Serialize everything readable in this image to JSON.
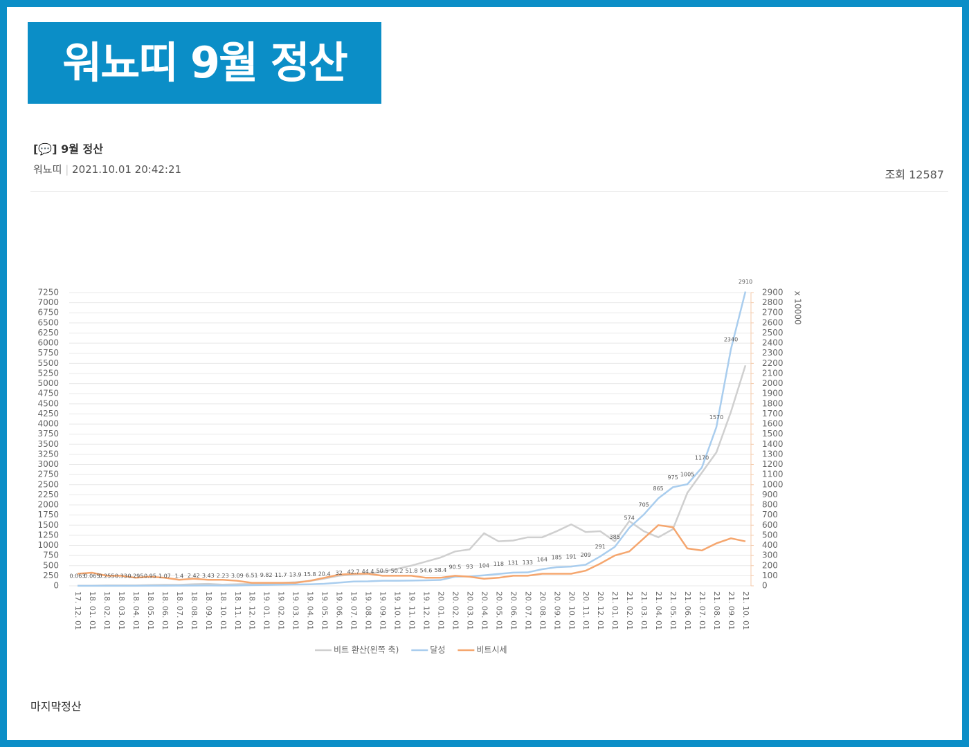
{
  "header": {
    "title": "워뇨띠 9월 정산"
  },
  "post": {
    "title": "9월 정산",
    "author": "워뇨띠",
    "date": "2021.10.01 20:42:21",
    "views": "조회 12587"
  },
  "chart_data": {
    "type": "line",
    "categories": [
      "17. 12. 01",
      "18. 01. 01",
      "18. 02. 01",
      "18. 03. 01",
      "18. 04. 01",
      "18. 05. 01",
      "18. 06. 01",
      "18. 07. 01",
      "18. 08. 01",
      "18. 09. 01",
      "18. 10. 01",
      "18. 11. 01",
      "18. 12. 01",
      "19. 01. 01",
      "19. 02. 01",
      "19. 03. 01",
      "19. 04. 01",
      "19. 05. 01",
      "19. 06. 01",
      "19. 07. 01",
      "19. 08. 01",
      "19. 09. 01",
      "19. 10. 01",
      "19. 11. 01",
      "19. 12. 01",
      "20. 01. 01",
      "20. 02. 01",
      "20. 03. 01",
      "20. 04. 01",
      "20. 05. 01",
      "20. 06. 01",
      "20. 07. 01",
      "20. 08. 01",
      "20. 09. 01",
      "20. 10. 01",
      "20. 11. 01",
      "20. 12. 01",
      "21. 01. 01",
      "21. 02. 01",
      "21. 03. 01",
      "21. 04. 01",
      "21. 05. 01",
      "21. 06. 01",
      "21. 07. 01",
      "21. 08. 01",
      "21. 09. 01",
      "21. 10. 01"
    ],
    "series": [
      {
        "name": "비트 환산(왼쪽 축)",
        "color": "#cfcfcf",
        "axis": "y",
        "values": [
          5,
          5,
          10,
          10,
          10,
          20,
          25,
          25,
          40,
          50,
          30,
          40,
          50,
          60,
          70,
          90,
          120,
          180,
          250,
          280,
          300,
          350,
          420,
          500,
          600,
          700,
          850,
          900,
          1300,
          1100,
          1120,
          1200,
          1200,
          1350,
          1520,
          1330,
          1350,
          1100,
          1600,
          1350,
          1200,
          1400,
          2300,
          2800,
          3300,
          4300,
          5450
        ]
      },
      {
        "name": "달성",
        "color": "#a9cdee",
        "axis": "y2",
        "values": [
          0.063,
          0.065,
          0.255,
          0.33,
          0.295,
          0.95,
          1.07,
          1.4,
          2.42,
          3.43,
          2.23,
          3.09,
          6.51,
          9.82,
          11.7,
          13.9,
          15.8,
          20.4,
          32,
          42.7,
          44.4,
          50.5,
          50.2,
          51.8,
          54.6,
          58.4,
          90.5,
          93,
          104,
          118,
          131,
          133,
          164,
          185,
          191,
          209,
          291,
          385,
          574,
          705,
          865,
          975,
          1005,
          1170,
          1570,
          2340,
          2910
        ]
      },
      {
        "name": "비트시세",
        "color": "#f5a66e",
        "axis": "y2",
        "values": [
          120,
          130,
          100,
          100,
          80,
          90,
          80,
          60,
          70,
          60,
          60,
          50,
          30,
          30,
          30,
          30,
          50,
          80,
          110,
          120,
          120,
          100,
          100,
          100,
          80,
          80,
          100,
          90,
          70,
          80,
          100,
          100,
          120,
          120,
          120,
          150,
          220,
          300,
          340,
          470,
          600,
          580,
          370,
          350,
          420,
          470,
          440
        ]
      }
    ],
    "ylim": [
      0,
      7250
    ],
    "yticks": [
      0,
      250,
      500,
      750,
      1000,
      1250,
      1500,
      1750,
      2000,
      2250,
      2500,
      2750,
      3000,
      3250,
      3500,
      3750,
      4000,
      4250,
      4500,
      4750,
      5000,
      5250,
      5500,
      5750,
      6000,
      6250,
      6500,
      6750,
      7000,
      7250
    ],
    "y2lim": [
      0,
      2900
    ],
    "y2ticks": [
      0,
      100,
      200,
      300,
      400,
      500,
      600,
      700,
      800,
      900,
      1000,
      1100,
      1200,
      1300,
      1400,
      1500,
      1600,
      1700,
      1800,
      1900,
      2000,
      2100,
      2200,
      2300,
      2400,
      2500,
      2600,
      2700,
      2800,
      2900
    ],
    "y2label": "x 10000",
    "grid": true
  },
  "footer": {
    "text": "마지막정산"
  }
}
